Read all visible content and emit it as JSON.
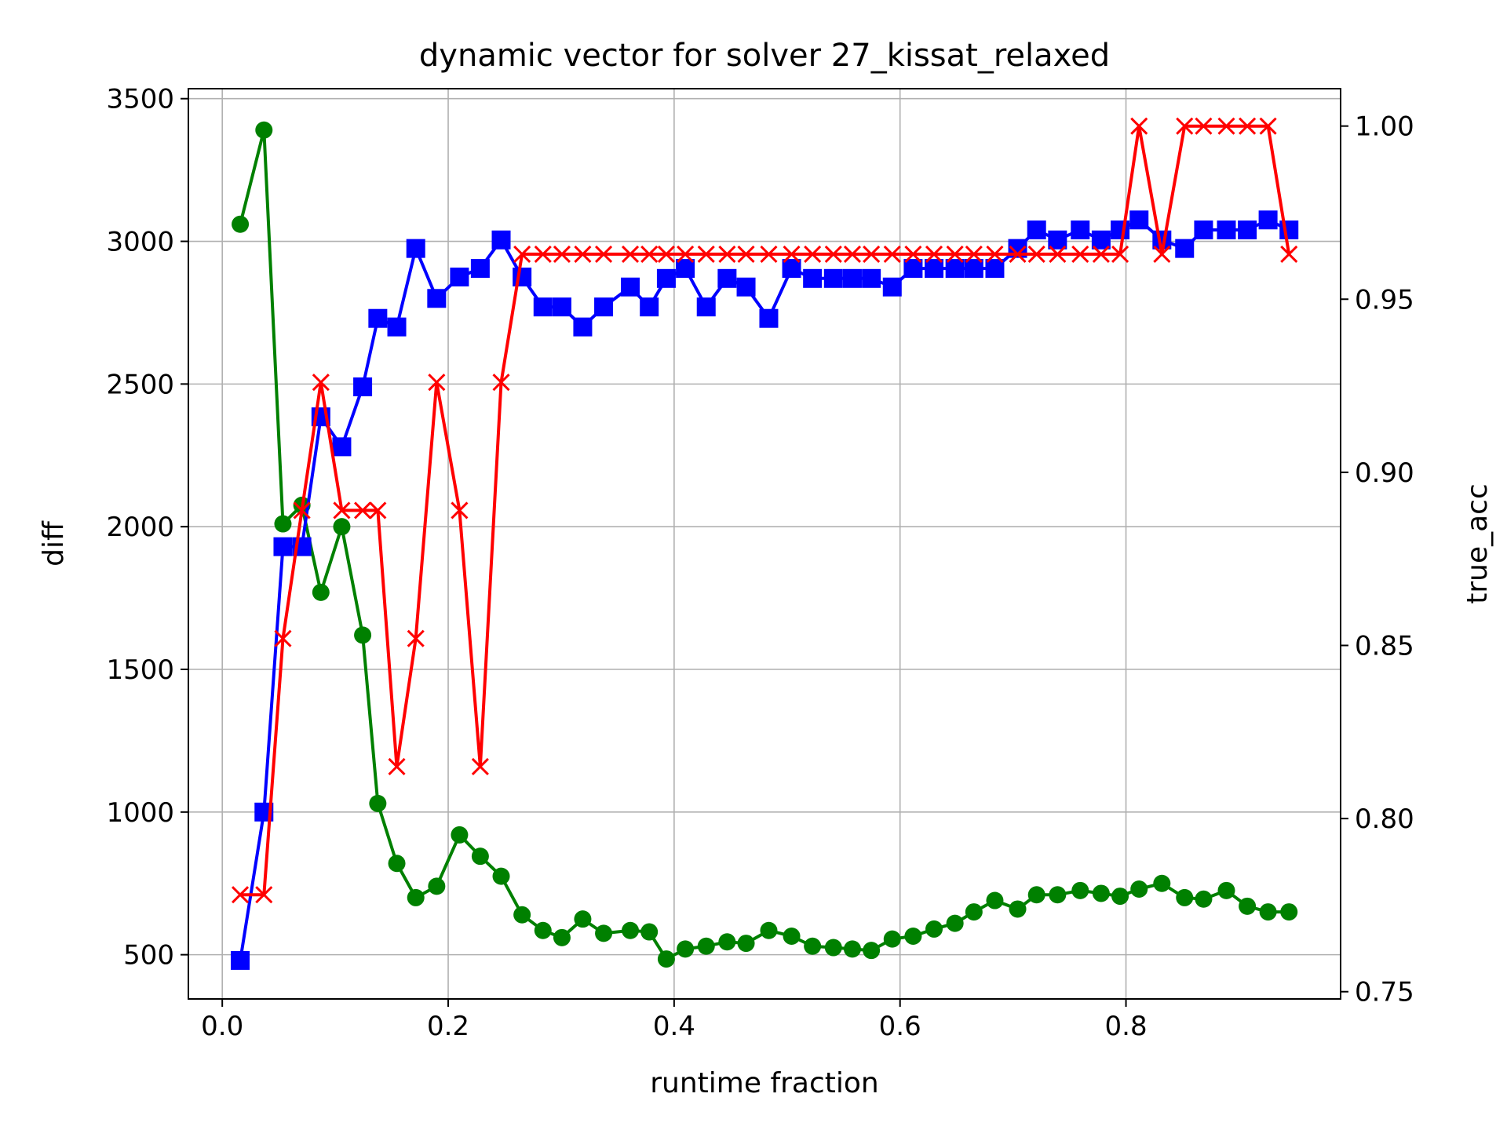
{
  "chart_data": {
    "type": "line",
    "title": "dynamic vector for solver 27_kissat_relaxed",
    "xlabel": "runtime fraction",
    "ylabel_left": "diff",
    "ylabel_right": "true_acc",
    "xlim": [
      -0.03,
      0.99
    ],
    "ylim_left": [
      345,
      3535
    ],
    "ylim_right": [
      0.7479,
      1.0108
    ],
    "x_ticks": [
      0.0,
      0.2,
      0.4,
      0.6,
      0.8
    ],
    "x_tick_labels": [
      "0.0",
      "0.2",
      "0.4",
      "0.6",
      "0.8"
    ],
    "y_left_ticks": [
      500,
      1000,
      1500,
      2000,
      2500,
      3000,
      3500
    ],
    "y_left_tick_labels": [
      "500",
      "1000",
      "1500",
      "2000",
      "2500",
      "3000",
      "3500"
    ],
    "y_right_ticks": [
      0.75,
      0.8,
      0.85,
      0.9,
      0.95,
      1.0
    ],
    "y_right_tick_labels": [
      "0.75",
      "0.80",
      "0.85",
      "0.90",
      "0.95",
      "1.00"
    ],
    "grid": true,
    "colors": {
      "left_label": "#008000",
      "right_label": "#ff0000"
    },
    "series": [
      {
        "axis": "left",
        "color": "#008000",
        "marker": "circle",
        "x": [
          0.0159,
          0.0369,
          0.0537,
          0.0705,
          0.0873,
          0.1058,
          0.1243,
          0.1377,
          0.1545,
          0.1713,
          0.1898,
          0.21,
          0.2284,
          0.2469,
          0.2654,
          0.2839,
          0.3007,
          0.3191,
          0.3376,
          0.3612,
          0.378,
          0.3931,
          0.4099,
          0.4284,
          0.4469,
          0.4637,
          0.4838,
          0.504,
          0.5225,
          0.541,
          0.5578,
          0.5746,
          0.5931,
          0.6116,
          0.6301,
          0.6486,
          0.6654,
          0.6839,
          0.7041,
          0.7209,
          0.7394,
          0.7595,
          0.778,
          0.7948,
          0.8116,
          0.8318,
          0.8519,
          0.8687,
          0.8889,
          0.9074,
          0.9258,
          0.9443
        ],
        "y": [
          3060,
          3390,
          2010,
          2075,
          1770,
          2000,
          1620,
          1030,
          820,
          700,
          740,
          920,
          845,
          775,
          640,
          585,
          560,
          625,
          575,
          585,
          580,
          485,
          520,
          530,
          545,
          540,
          585,
          565,
          530,
          525,
          520,
          515,
          555,
          565,
          590,
          610,
          650,
          690,
          660,
          710,
          710,
          725,
          715,
          705,
          730,
          750,
          700,
          695,
          725,
          670,
          650,
          650
        ]
      },
      {
        "axis": "left",
        "color": "#0000ff",
        "marker": "square",
        "x": [
          0.0159,
          0.0369,
          0.0537,
          0.0705,
          0.0873,
          0.1058,
          0.1243,
          0.1377,
          0.1545,
          0.1713,
          0.1898,
          0.21,
          0.2284,
          0.2469,
          0.2654,
          0.2839,
          0.3007,
          0.3191,
          0.3376,
          0.3612,
          0.378,
          0.3931,
          0.4099,
          0.4284,
          0.4469,
          0.4637,
          0.4838,
          0.504,
          0.5225,
          0.541,
          0.5578,
          0.5746,
          0.5931,
          0.6116,
          0.6301,
          0.6486,
          0.6654,
          0.6839,
          0.7041,
          0.7209,
          0.7394,
          0.7595,
          0.778,
          0.7948,
          0.8116,
          0.8318,
          0.8519,
          0.8687,
          0.8889,
          0.9074,
          0.9258,
          0.9443
        ],
        "y": [
          480,
          1000,
          1930,
          1930,
          2385,
          2280,
          2490,
          2730,
          2700,
          2975,
          2800,
          2875,
          2905,
          3005,
          2875,
          2770,
          2770,
          2700,
          2770,
          2840,
          2770,
          2870,
          2905,
          2770,
          2870,
          2840,
          2730,
          2905,
          2870,
          2870,
          2870,
          2870,
          2840,
          2905,
          2905,
          2905,
          2905,
          2905,
          2975,
          3040,
          3005,
          3040,
          3005,
          3040,
          3075,
          3005,
          2975,
          3040,
          3040,
          3040,
          3075,
          3040
        ]
      },
      {
        "axis": "right",
        "color": "#ff0000",
        "marker": "x",
        "x": [
          0.0159,
          0.0369,
          0.0537,
          0.0705,
          0.0873,
          0.1058,
          0.1243,
          0.1377,
          0.1545,
          0.1713,
          0.1898,
          0.21,
          0.2284,
          0.2469,
          0.2654,
          0.2839,
          0.3007,
          0.3191,
          0.3376,
          0.3612,
          0.378,
          0.3931,
          0.4099,
          0.4284,
          0.4469,
          0.4637,
          0.4838,
          0.504,
          0.5225,
          0.541,
          0.5578,
          0.5746,
          0.5931,
          0.6116,
          0.6301,
          0.6486,
          0.6654,
          0.6839,
          0.7041,
          0.7209,
          0.7394,
          0.7595,
          0.778,
          0.7948,
          0.8116,
          0.8318,
          0.8519,
          0.8687,
          0.8889,
          0.9074,
          0.9258,
          0.9443
        ],
        "y": [
          0.778,
          0.778,
          0.852,
          0.889,
          0.926,
          0.889,
          0.889,
          0.889,
          0.815,
          0.852,
          0.926,
          0.889,
          0.815,
          0.926,
          0.963,
          0.963,
          0.963,
          0.963,
          0.963,
          0.963,
          0.963,
          0.963,
          0.963,
          0.963,
          0.963,
          0.963,
          0.963,
          0.963,
          0.963,
          0.963,
          0.963,
          0.963,
          0.963,
          0.963,
          0.963,
          0.963,
          0.963,
          0.963,
          0.963,
          0.963,
          0.963,
          0.963,
          0.963,
          0.963,
          1.0,
          0.963,
          1.0,
          1.0,
          1.0,
          1.0,
          1.0,
          0.963
        ]
      }
    ]
  }
}
